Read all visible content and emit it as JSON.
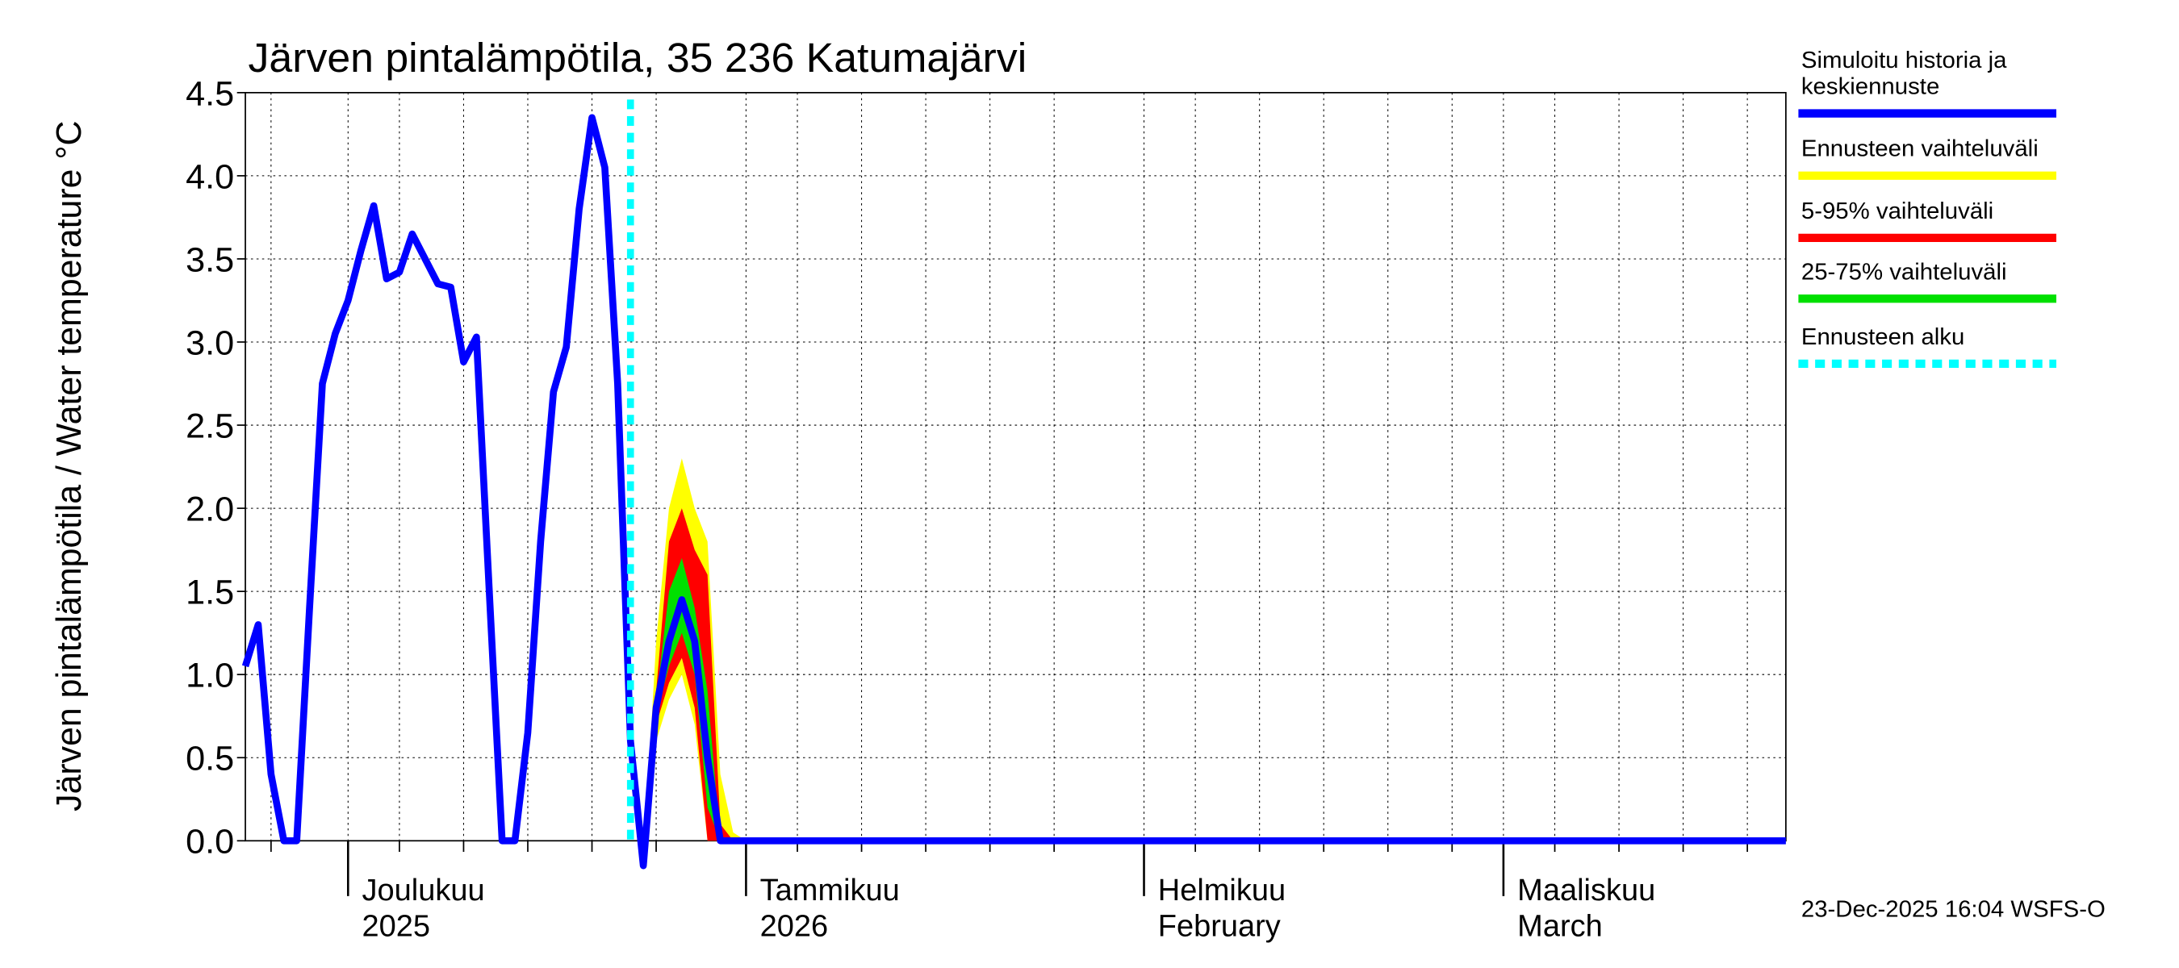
{
  "chart_data": {
    "type": "line",
    "title": "Järven pintalämpötila, 35 236 Katumajärvi",
    "y_label": "Järven pintalämpötila / Water temperature °C",
    "timestamp": "23-Dec-2025 16:04 WSFS-O",
    "xlim": [
      "2025-11-23",
      "2026-03-23"
    ],
    "ylim": [
      0,
      4.5
    ],
    "yticks": [
      {
        "value": 0,
        "label": "0.0"
      },
      {
        "value": 0.5,
        "label": "0.5"
      },
      {
        "value": 1,
        "label": "1.0"
      },
      {
        "value": 1.5,
        "label": "1.5"
      },
      {
        "value": 2,
        "label": "2.0"
      },
      {
        "value": 2.5,
        "label": "2.5"
      },
      {
        "value": 3,
        "label": "3.0"
      },
      {
        "value": 3.5,
        "label": "3.5"
      },
      {
        "value": 4,
        "label": "4.0"
      },
      {
        "value": 4.5,
        "label": "4.5"
      }
    ],
    "month_ticks": [
      {
        "value": "2025-12-01",
        "label": "Joulukuu",
        "label2": "2025"
      },
      {
        "value": "2026-01-01",
        "label": "Tammikuu",
        "label2": "2026"
      },
      {
        "value": "2026-02-01",
        "label": "Helmikuu",
        "label2": "February"
      },
      {
        "value": "2026-03-01",
        "label": "Maaliskuu",
        "label2": "March"
      }
    ],
    "xgrid_days": [
      5,
      10,
      15,
      20,
      25
    ],
    "grid": true,
    "x": [
      "2025-11-23",
      "2025-11-24",
      "2025-11-25",
      "2025-11-26",
      "2025-11-27",
      "2025-11-28",
      "2025-11-29",
      "2025-11-30",
      "2025-12-01",
      "2025-12-02",
      "2025-12-03",
      "2025-12-04",
      "2025-12-05",
      "2025-12-06",
      "2025-12-07",
      "2025-12-08",
      "2025-12-09",
      "2025-12-10",
      "2025-12-11",
      "2025-12-12",
      "2025-12-13",
      "2025-12-14",
      "2025-12-15",
      "2025-12-16",
      "2025-12-17",
      "2025-12-18",
      "2025-12-19",
      "2025-12-20",
      "2025-12-21",
      "2025-12-22",
      "2025-12-23",
      "2025-12-24",
      "2025-12-25",
      "2025-12-26",
      "2025-12-27",
      "2025-12-28",
      "2025-12-29",
      "2025-12-30",
      "2025-12-31",
      "2026-01-01",
      "2026-01-02",
      "2026-01-03",
      "2026-01-04",
      "2026-01-05",
      "2026-01-06",
      "2026-01-07",
      "2026-01-08",
      "2026-01-09",
      "2026-01-10",
      "2026-01-11",
      "2026-01-12",
      "2026-01-13",
      "2026-01-14",
      "2026-01-15",
      "2026-01-16",
      "2026-01-17",
      "2026-01-18",
      "2026-01-19",
      "2026-01-20",
      "2026-01-21",
      "2026-01-22",
      "2026-01-23",
      "2026-01-24",
      "2026-01-25",
      "2026-01-26",
      "2026-01-27",
      "2026-01-28",
      "2026-01-29",
      "2026-01-30",
      "2026-01-31",
      "2026-02-01",
      "2026-02-02",
      "2026-02-03",
      "2026-02-04",
      "2026-02-05",
      "2026-02-06",
      "2026-02-07",
      "2026-02-08",
      "2026-02-09",
      "2026-02-10",
      "2026-02-11",
      "2026-02-12",
      "2026-02-13",
      "2026-02-14",
      "2026-02-15",
      "2026-02-16",
      "2026-02-17",
      "2026-02-18",
      "2026-02-19",
      "2026-02-20",
      "2026-02-21",
      "2026-02-22",
      "2026-02-23",
      "2026-02-24",
      "2026-02-25",
      "2026-02-26",
      "2026-02-27",
      "2026-02-28",
      "2026-03-01",
      "2026-03-02",
      "2026-03-03",
      "2026-03-04",
      "2026-03-05",
      "2026-03-06",
      "2026-03-07",
      "2026-03-08",
      "2026-03-09",
      "2026-03-10",
      "2026-03-11",
      "2026-03-12",
      "2026-03-13",
      "2026-03-14",
      "2026-03-15",
      "2026-03-16",
      "2026-03-17",
      "2026-03-18",
      "2026-03-19",
      "2026-03-20",
      "2026-03-21",
      "2026-03-22",
      "2026-03-23"
    ],
    "series": [
      {
        "name": "Simuloitu historia ja keskiennuste",
        "color": "#0000ff",
        "values": [
          1.05,
          1.3,
          0.4,
          0,
          0,
          1.4,
          2.75,
          3.05,
          3.25,
          3.55,
          3.82,
          3.38,
          3.42,
          3.65,
          3.5,
          3.35,
          3.33,
          2.88,
          3.03,
          1.5,
          0,
          0,
          0.65,
          1.8,
          2.7,
          2.97,
          3.8,
          4.35,
          4.05,
          2.75,
          0.6,
          -0.15,
          0.8,
          1.2,
          1.45,
          1.2,
          0.5,
          0,
          0,
          0,
          0,
          0,
          0,
          0,
          0,
          0,
          0,
          0,
          0,
          0,
          0,
          0,
          0,
          0,
          0,
          0,
          0,
          0,
          0,
          0,
          0,
          0,
          0,
          0,
          0,
          0,
          0,
          0,
          0,
          0,
          0,
          0,
          0,
          0,
          0,
          0,
          0,
          0,
          0,
          0,
          0,
          0,
          0,
          0,
          0,
          0,
          0,
          0,
          0,
          0,
          0,
          0,
          0,
          0,
          0,
          0,
          0,
          0,
          0,
          0,
          0,
          0,
          0,
          0,
          0,
          0,
          0,
          0,
          0,
          0,
          0,
          0,
          0,
          0,
          0,
          0,
          0,
          0,
          0,
          0,
          0
        ]
      }
    ],
    "bands": [
      {
        "name": "Ennusteen vaihteluväli",
        "color": "#ffff00",
        "x": [
          "2025-12-23",
          "2025-12-24",
          "2025-12-25",
          "2025-12-26",
          "2025-12-27",
          "2025-12-28",
          "2025-12-29",
          "2025-12-30",
          "2025-12-31",
          "2026-01-01"
        ],
        "upper": [
          0.6,
          -0.15,
          1.2,
          2.0,
          2.3,
          2.0,
          1.8,
          0.4,
          0.05,
          0
        ],
        "lower": [
          0.6,
          -0.15,
          0.6,
          0.85,
          1.0,
          0.7,
          0,
          0,
          0,
          0
        ]
      },
      {
        "name": "5-95% vaihteluväli",
        "color": "#ff0000",
        "x": [
          "2025-12-23",
          "2025-12-24",
          "2025-12-25",
          "2025-12-26",
          "2025-12-27",
          "2025-12-28",
          "2025-12-29",
          "2025-12-30",
          "2025-12-31",
          "2026-01-01"
        ],
        "upper": [
          0.6,
          -0.15,
          0.9,
          1.8,
          2.0,
          1.75,
          1.6,
          0.1,
          0,
          0
        ],
        "lower": [
          0.6,
          -0.15,
          0.7,
          0.95,
          1.1,
          0.8,
          0,
          0,
          0,
          0
        ]
      },
      {
        "name": "25-75% vaihteluväli",
        "color": "#00e000",
        "x": [
          "2025-12-23",
          "2025-12-24",
          "2025-12-25",
          "2025-12-26",
          "2025-12-27",
          "2025-12-28",
          "2025-12-29",
          "2025-12-30",
          "2025-12-31",
          "2026-01-01"
        ],
        "upper": [
          0.6,
          -0.15,
          0.85,
          1.5,
          1.7,
          1.4,
          0.9,
          0,
          0,
          0
        ],
        "lower": [
          0.6,
          -0.15,
          0.75,
          1.05,
          1.25,
          1.0,
          0.2,
          0,
          0,
          0
        ]
      }
    ],
    "forecast_start": {
      "name": "Ennusteen alku",
      "x": "2025-12-23",
      "color": "#00ffff"
    }
  }
}
